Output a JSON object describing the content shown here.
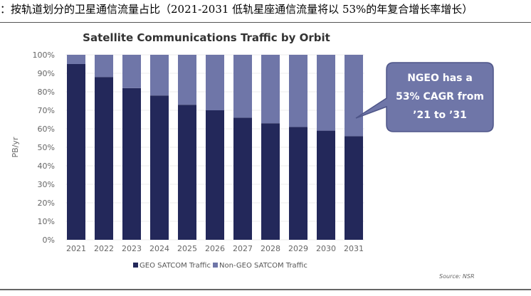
{
  "caption": "：按轨道划分的卫星通信流量占比（2021-2031 低轨星座通信流量将以 53%的年复合增长率增长）",
  "chart_data": {
    "type": "bar",
    "stacked": true,
    "title": "Satellite Communications Traffic by Orbit",
    "ylabel": "PB/yr",
    "ylim": [
      0,
      100
    ],
    "yticks": [
      "0%",
      "10%",
      "20%",
      "30%",
      "40%",
      "50%",
      "60%",
      "70%",
      "80%",
      "90%",
      "100%"
    ],
    "categories": [
      "2021",
      "2022",
      "2023",
      "2024",
      "2025",
      "2026",
      "2027",
      "2028",
      "2029",
      "2030",
      "2031"
    ],
    "series": [
      {
        "name": "GEO SATCOM Traffic",
        "color": "#23285a",
        "values": [
          95,
          88,
          82,
          78,
          73,
          70,
          66,
          63,
          61,
          59,
          56
        ]
      },
      {
        "name": "Non-GEO SATCOM Traffic",
        "color": "#6f76a8",
        "values": [
          5,
          12,
          18,
          22,
          27,
          30,
          34,
          37,
          39,
          41,
          44
        ]
      }
    ],
    "legend": "bottom",
    "grid": true,
    "annotation": [
      "NGEO has a",
      "53% CAGR from",
      "’21 to ’31"
    ],
    "source": "Source: NSR"
  }
}
